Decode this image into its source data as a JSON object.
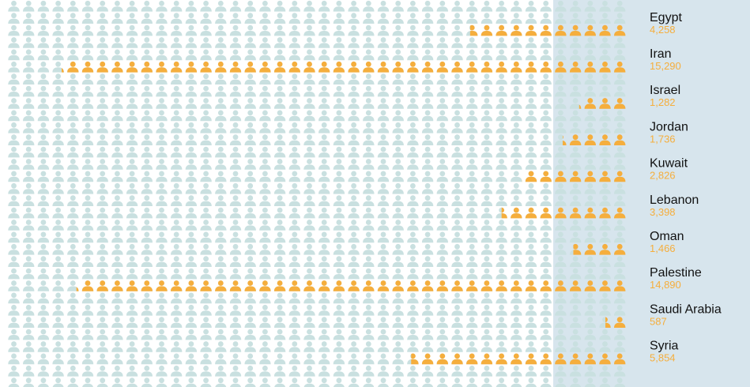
{
  "chart_data": {
    "type": "pictograph",
    "icon": "person-icon",
    "categories": [
      "Egypt",
      "Iran",
      "Israel",
      "Jordan",
      "Kuwait",
      "Lebanon",
      "Oman",
      "Palestine",
      "Saudi Arabia",
      "Syria"
    ],
    "labels": [
      "4,258",
      "15,290",
      "1,282",
      "1,736",
      "2,826",
      "3,398",
      "1,466",
      "14,890",
      "587",
      "5,854"
    ],
    "values": [
      4258,
      15290,
      1282,
      1736,
      2826,
      3398,
      1466,
      14890,
      587,
      5854
    ],
    "icon_value": 400,
    "colors": {
      "highlight": "#F5AE3D",
      "background_icon": "#C9E0E0",
      "label_band": "#D7E5ED",
      "country_text": "#111111",
      "value_text": "#F5AE3D"
    }
  }
}
